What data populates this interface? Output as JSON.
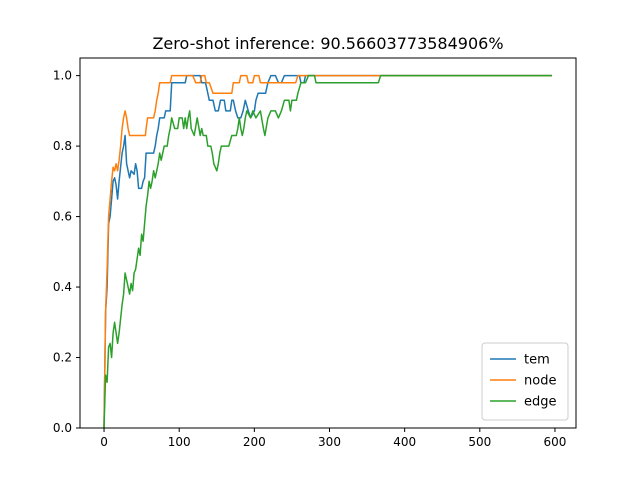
{
  "chart_data": {
    "type": "line",
    "title": "Zero-shot inference: 90.56603773584906%",
    "xlabel": "",
    "ylabel": "",
    "xlim": [
      -32,
      628
    ],
    "ylim": [
      0.0,
      1.05
    ],
    "x_ticks": [
      0,
      100,
      200,
      300,
      400,
      500,
      600
    ],
    "y_ticks": [
      0.0,
      0.2,
      0.4,
      0.6,
      0.8,
      1.0
    ],
    "legend_position": "lower-right",
    "grid": false,
    "series": [
      {
        "name": "tem",
        "color": "#1f77b4",
        "points": [
          [
            0,
            0
          ],
          [
            2,
            0.33
          ],
          [
            4,
            0.4
          ],
          [
            6,
            0.58
          ],
          [
            8,
            0.6
          ],
          [
            10,
            0.65
          ],
          [
            12,
            0.7
          ],
          [
            14,
            0.71
          ],
          [
            16,
            0.69
          ],
          [
            18,
            0.65
          ],
          [
            20,
            0.7
          ],
          [
            22,
            0.74
          ],
          [
            24,
            0.78
          ],
          [
            26,
            0.8
          ],
          [
            28,
            0.83
          ],
          [
            30,
            0.75
          ],
          [
            32,
            0.73
          ],
          [
            34,
            0.71
          ],
          [
            36,
            0.73
          ],
          [
            40,
            0.72
          ],
          [
            42,
            0.75
          ],
          [
            44,
            0.73
          ],
          [
            46,
            0.68
          ],
          [
            50,
            0.68
          ],
          [
            52,
            0.7
          ],
          [
            54,
            0.71
          ],
          [
            56,
            0.78
          ],
          [
            60,
            0.78
          ],
          [
            66,
            0.78
          ],
          [
            68,
            0.8
          ],
          [
            70,
            0.83
          ],
          [
            72,
            0.85
          ],
          [
            74,
            0.88
          ],
          [
            80,
            0.88
          ],
          [
            82,
            0.9
          ],
          [
            88,
            0.9
          ],
          [
            90,
            0.98
          ],
          [
            98,
            0.98
          ],
          [
            100,
            0.98
          ],
          [
            108,
            0.98
          ],
          [
            110,
            1.0
          ],
          [
            128,
            1.0
          ],
          [
            130,
            0.98
          ],
          [
            135,
            0.98
          ],
          [
            138,
            0.95
          ],
          [
            140,
            0.93
          ],
          [
            145,
            0.93
          ],
          [
            148,
            0.9
          ],
          [
            152,
            0.9
          ],
          [
            155,
            0.93
          ],
          [
            160,
            0.93
          ],
          [
            162,
            0.9
          ],
          [
            168,
            0.9
          ],
          [
            170,
            0.93
          ],
          [
            172,
            0.93
          ],
          [
            175,
            0.9
          ],
          [
            178,
            0.88
          ],
          [
            182,
            0.88
          ],
          [
            185,
            0.9
          ],
          [
            188,
            0.93
          ],
          [
            192,
            0.9
          ],
          [
            195,
            0.88
          ],
          [
            200,
            0.9
          ],
          [
            202,
            0.93
          ],
          [
            205,
            0.95
          ],
          [
            210,
            0.95
          ],
          [
            215,
            0.95
          ],
          [
            218,
            0.98
          ],
          [
            222,
            1.0
          ],
          [
            228,
            1.0
          ],
          [
            232,
            0.98
          ],
          [
            236,
            0.98
          ],
          [
            240,
            1.0
          ],
          [
            260,
            1.0
          ],
          [
            262,
            0.98
          ],
          [
            266,
            0.98
          ],
          [
            268,
            1.0
          ],
          [
            595,
            1.0
          ]
        ]
      },
      {
        "name": "node",
        "color": "#ff7f0e",
        "points": [
          [
            0,
            0
          ],
          [
            2,
            0.33
          ],
          [
            4,
            0.45
          ],
          [
            6,
            0.6
          ],
          [
            8,
            0.65
          ],
          [
            10,
            0.7
          ],
          [
            12,
            0.74
          ],
          [
            14,
            0.73
          ],
          [
            16,
            0.75
          ],
          [
            18,
            0.73
          ],
          [
            20,
            0.76
          ],
          [
            22,
            0.8
          ],
          [
            24,
            0.85
          ],
          [
            26,
            0.88
          ],
          [
            28,
            0.9
          ],
          [
            30,
            0.88
          ],
          [
            32,
            0.85
          ],
          [
            34,
            0.83
          ],
          [
            40,
            0.83
          ],
          [
            44,
            0.83
          ],
          [
            48,
            0.83
          ],
          [
            52,
            0.83
          ],
          [
            55,
            0.83
          ],
          [
            56,
            0.85
          ],
          [
            58,
            0.88
          ],
          [
            66,
            0.88
          ],
          [
            68,
            0.9
          ],
          [
            70,
            0.93
          ],
          [
            72,
            0.95
          ],
          [
            74,
            0.98
          ],
          [
            84,
            0.98
          ],
          [
            88,
            0.98
          ],
          [
            90,
            1.0
          ],
          [
            118,
            1.0
          ],
          [
            122,
            0.98
          ],
          [
            128,
            0.98
          ],
          [
            130,
            1.0
          ],
          [
            134,
            1.0
          ],
          [
            136,
            0.98
          ],
          [
            140,
            0.98
          ],
          [
            145,
            0.95
          ],
          [
            150,
            0.95
          ],
          [
            155,
            0.95
          ],
          [
            160,
            0.95
          ],
          [
            165,
            0.95
          ],
          [
            170,
            0.95
          ],
          [
            172,
            0.98
          ],
          [
            180,
            0.98
          ],
          [
            182,
            1.0
          ],
          [
            190,
            1.0
          ],
          [
            192,
            0.98
          ],
          [
            198,
            0.98
          ],
          [
            200,
            1.0
          ],
          [
            206,
            1.0
          ],
          [
            208,
            0.98
          ],
          [
            225,
            0.98
          ],
          [
            228,
            0.98
          ],
          [
            230,
            0.98
          ],
          [
            235,
            0.98
          ],
          [
            255,
            0.98
          ],
          [
            258,
            1.0
          ],
          [
            365,
            1.0
          ],
          [
            368,
            1.0
          ],
          [
            595,
            1.0
          ]
        ]
      },
      {
        "name": "edge",
        "color": "#2ca02c",
        "points": [
          [
            0,
            0
          ],
          [
            2,
            0.15
          ],
          [
            4,
            0.13
          ],
          [
            6,
            0.23
          ],
          [
            8,
            0.24
          ],
          [
            10,
            0.2
          ],
          [
            12,
            0.27
          ],
          [
            14,
            0.3
          ],
          [
            16,
            0.27
          ],
          [
            18,
            0.24
          ],
          [
            20,
            0.27
          ],
          [
            22,
            0.31
          ],
          [
            24,
            0.35
          ],
          [
            26,
            0.38
          ],
          [
            28,
            0.44
          ],
          [
            30,
            0.42
          ],
          [
            32,
            0.4
          ],
          [
            34,
            0.38
          ],
          [
            36,
            0.41
          ],
          [
            38,
            0.39
          ],
          [
            40,
            0.44
          ],
          [
            42,
            0.45
          ],
          [
            44,
            0.48
          ],
          [
            46,
            0.51
          ],
          [
            48,
            0.49
          ],
          [
            50,
            0.55
          ],
          [
            52,
            0.53
          ],
          [
            54,
            0.58
          ],
          [
            56,
            0.63
          ],
          [
            58,
            0.66
          ],
          [
            60,
            0.7
          ],
          [
            62,
            0.68
          ],
          [
            64,
            0.7
          ],
          [
            66,
            0.73
          ],
          [
            68,
            0.71
          ],
          [
            70,
            0.73
          ],
          [
            72,
            0.75
          ],
          [
            74,
            0.78
          ],
          [
            76,
            0.76
          ],
          [
            80,
            0.8
          ],
          [
            84,
            0.8
          ],
          [
            86,
            0.83
          ],
          [
            88,
            0.85
          ],
          [
            90,
            0.88
          ],
          [
            94,
            0.85
          ],
          [
            98,
            0.85
          ],
          [
            100,
            0.88
          ],
          [
            104,
            0.88
          ],
          [
            106,
            0.85
          ],
          [
            108,
            0.88
          ],
          [
            110,
            0.85
          ],
          [
            112,
            0.88
          ],
          [
            114,
            0.9
          ],
          [
            116,
            0.85
          ],
          [
            120,
            0.83
          ],
          [
            124,
            0.88
          ],
          [
            128,
            0.83
          ],
          [
            130,
            0.85
          ],
          [
            132,
            0.83
          ],
          [
            136,
            0.83
          ],
          [
            138,
            0.8
          ],
          [
            142,
            0.8
          ],
          [
            144,
            0.78
          ],
          [
            146,
            0.75
          ],
          [
            150,
            0.73
          ],
          [
            152,
            0.75
          ],
          [
            154,
            0.78
          ],
          [
            156,
            0.8
          ],
          [
            160,
            0.8
          ],
          [
            166,
            0.8
          ],
          [
            170,
            0.83
          ],
          [
            176,
            0.83
          ],
          [
            178,
            0.85
          ],
          [
            180,
            0.88
          ],
          [
            182,
            0.85
          ],
          [
            184,
            0.83
          ],
          [
            186,
            0.85
          ],
          [
            188,
            0.88
          ],
          [
            190,
            0.9
          ],
          [
            195,
            0.88
          ],
          [
            198,
            0.9
          ],
          [
            202,
            0.88
          ],
          [
            208,
            0.9
          ],
          [
            212,
            0.85
          ],
          [
            214,
            0.83
          ],
          [
            218,
            0.88
          ],
          [
            222,
            0.9
          ],
          [
            228,
            0.9
          ],
          [
            232,
            0.88
          ],
          [
            236,
            0.9
          ],
          [
            240,
            0.93
          ],
          [
            246,
            0.93
          ],
          [
            248,
            0.9
          ],
          [
            250,
            0.93
          ],
          [
            256,
            0.93
          ],
          [
            258,
            0.95
          ],
          [
            262,
            0.98
          ],
          [
            268,
            0.98
          ],
          [
            272,
            1.0
          ],
          [
            280,
            1.0
          ],
          [
            282,
            0.98
          ],
          [
            300,
            0.98
          ],
          [
            320,
            0.98
          ],
          [
            340,
            0.98
          ],
          [
            360,
            0.98
          ],
          [
            365,
            0.98
          ],
          [
            368,
            1.0
          ],
          [
            595,
            1.0
          ]
        ]
      }
    ]
  }
}
